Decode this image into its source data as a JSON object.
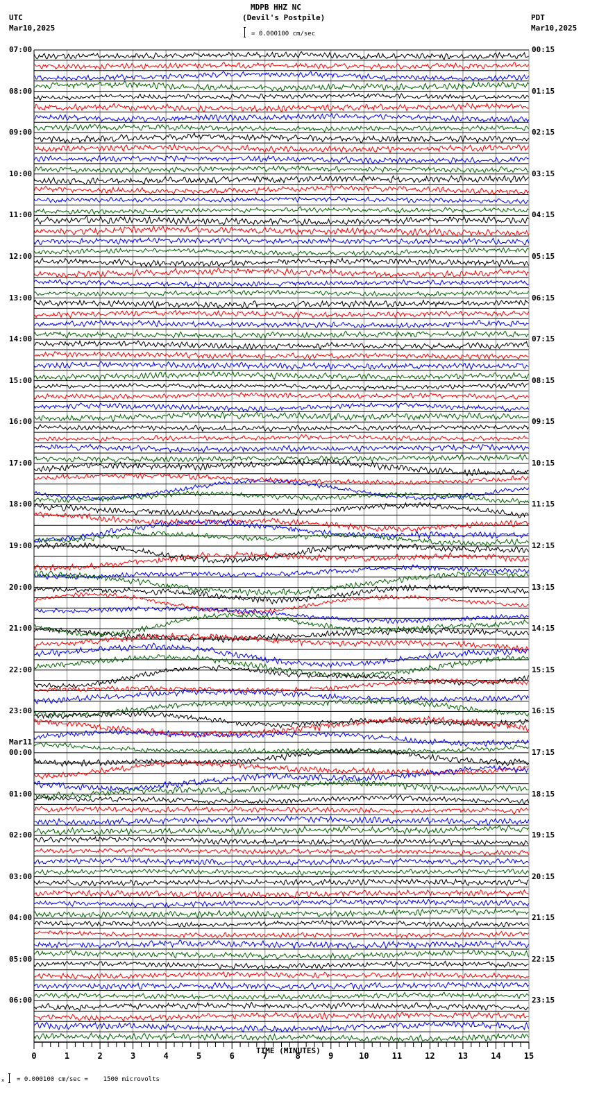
{
  "header": {
    "station": "MDPB HHZ NC",
    "location": "(Devil's Postpile)",
    "scale_text": "= 0.000100 cm/sec",
    "left_tz": "UTC",
    "left_date": "Mar10,2025",
    "right_tz": "PDT",
    "right_date": "Mar10,2025"
  },
  "footer": {
    "scale_text": "= 0.000100 cm/sec =    1500 microvolts",
    "scale_prefix": "x"
  },
  "chart_data": {
    "type": "line",
    "title": "MDPB HHZ NC (Devil's Postpile)",
    "subtitle": "= 0.000100 cm/sec",
    "xlabel": "TIME (MINUTES)",
    "ylabel": "",
    "x_ticks": [
      "0",
      "1",
      "2",
      "3",
      "4",
      "5",
      "6",
      "7",
      "8",
      "9",
      "10",
      "11",
      "12",
      "13",
      "14",
      "15"
    ],
    "xlim": [
      0,
      15
    ],
    "grid": true,
    "traces_per_hour": 4,
    "trace_count": 96,
    "trace_colors": [
      "#000000",
      "#ff0000",
      "#0000ff",
      "#006400"
    ],
    "left_labels": [
      "07:00",
      "08:00",
      "09:00",
      "10:00",
      "11:00",
      "12:00",
      "13:00",
      "14:00",
      "15:00",
      "16:00",
      "17:00",
      "18:00",
      "19:00",
      "20:00",
      "21:00",
      "22:00",
      "23:00",
      "00:00",
      "01:00",
      "02:00",
      "03:00",
      "04:00",
      "05:00",
      "06:00"
    ],
    "left_date_change": {
      "index": 17,
      "label": "Mar11"
    },
    "right_labels": [
      "00:15",
      "01:15",
      "02:15",
      "03:15",
      "04:15",
      "05:15",
      "06:15",
      "07:15",
      "08:15",
      "09:15",
      "10:15",
      "11:15",
      "12:15",
      "13:15",
      "14:15",
      "15:15",
      "16:15",
      "17:15",
      "18:15",
      "19:15",
      "20:15",
      "21:15",
      "22:15",
      "23:15"
    ],
    "scale": "0.000100 cm/sec = 1500 microvolts",
    "high_activity_hours_utc": [
      "17:00",
      "18:00",
      "19:00",
      "20:00",
      "21:00",
      "22:00",
      "23:00",
      "00:00"
    ]
  }
}
